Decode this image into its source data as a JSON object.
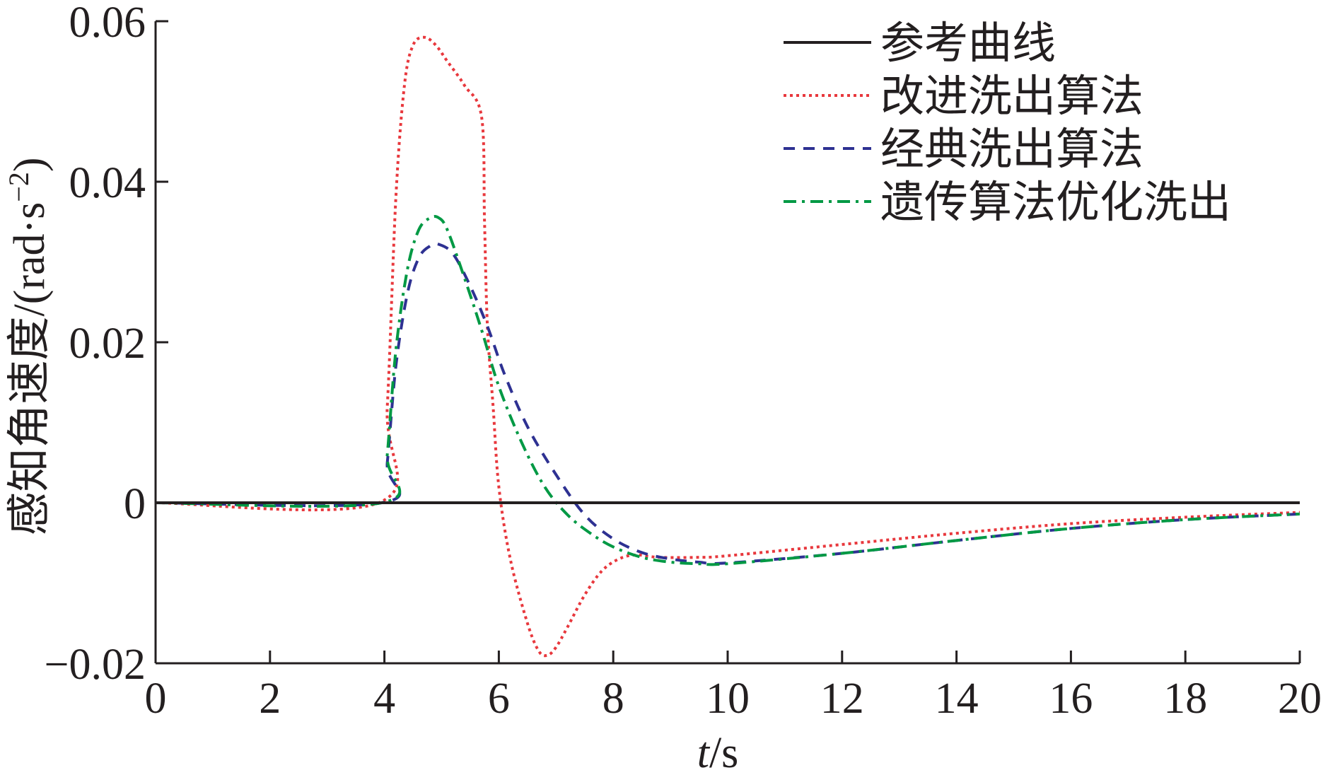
{
  "chart_data": {
    "type": "line",
    "xlabel_italic": "t",
    "xlabel_unit": "/s",
    "ylabel_main": "感知角速度/(rad·s",
    "ylabel_sup": "−2",
    "ylabel_close": ")",
    "xlim": [
      0,
      20
    ],
    "ylim": [
      -0.02,
      0.06
    ],
    "xticks": [
      0,
      2,
      4,
      6,
      8,
      10,
      12,
      14,
      16,
      18,
      20
    ],
    "xtick_labels": [
      "0",
      "2",
      "4",
      "6",
      "8",
      "10",
      "12",
      "14",
      "16",
      "18",
      "20"
    ],
    "yticks": [
      -0.02,
      0,
      0.02,
      0.04,
      0.06
    ],
    "ytick_labels": [
      "−0.02",
      "0",
      "0.02",
      "0.04",
      "0.06"
    ],
    "grid": false,
    "legend_position": "top-right",
    "series": [
      {
        "name": "参考曲线",
        "color": "#231f20",
        "dash": "solid",
        "x": [
          0,
          20
        ],
        "y": [
          0,
          0
        ]
      },
      {
        "name": "改进洗出算法",
        "color": "#e8383d",
        "dash": "dotted",
        "x": [
          0,
          3.9,
          4.05,
          4.2,
          4.35,
          4.5,
          4.7,
          4.9,
          5.1,
          5.4,
          5.7,
          5.75,
          5.8,
          5.9,
          6.0,
          6.2,
          6.5,
          6.7,
          6.85,
          7.0,
          7.2,
          7.5,
          7.8,
          8.1,
          8.4,
          8.8,
          9.5,
          10,
          12,
          14,
          16,
          18,
          20
        ],
        "y": [
          0,
          0,
          0.012,
          0.038,
          0.052,
          0.057,
          0.058,
          0.057,
          0.055,
          0.052,
          0.048,
          0.035,
          0.022,
          0.012,
          0.002,
          -0.007,
          -0.015,
          -0.0185,
          -0.019,
          -0.018,
          -0.0155,
          -0.0115,
          -0.0085,
          -0.007,
          -0.0065,
          -0.0068,
          -0.0068,
          -0.0066,
          -0.0052,
          -0.0038,
          -0.0026,
          -0.0018,
          -0.0012
        ]
      },
      {
        "name": "经典洗出算法",
        "color": "#2e3192",
        "dash": "dashed",
        "x": [
          0,
          3.95,
          4.05,
          4.2,
          4.4,
          4.6,
          4.8,
          4.95,
          5.2,
          5.5,
          5.8,
          6.1,
          6.5,
          7.0,
          7.5,
          8.0,
          8.5,
          9.0,
          9.5,
          10,
          12,
          14,
          16,
          18,
          20
        ],
        "y": [
          0,
          0,
          0.005,
          0.017,
          0.026,
          0.0305,
          0.032,
          0.0322,
          0.031,
          0.027,
          0.022,
          0.016,
          0.0095,
          0.0035,
          -0.0015,
          -0.0045,
          -0.0062,
          -0.007,
          -0.0074,
          -0.0075,
          -0.0063,
          -0.0047,
          -0.0032,
          -0.0021,
          -0.0014
        ]
      },
      {
        "name": "遗传算法优化洗出",
        "color": "#009944",
        "dash": "dashdot",
        "x": [
          0,
          3.95,
          4.05,
          4.2,
          4.4,
          4.6,
          4.8,
          4.95,
          5.1,
          5.4,
          5.7,
          6.0,
          6.4,
          6.8,
          7.2,
          7.6,
          8.0,
          8.5,
          9.0,
          9.5,
          10,
          12,
          14,
          16,
          18,
          20
        ],
        "y": [
          0,
          0,
          0.006,
          0.019,
          0.029,
          0.034,
          0.0355,
          0.0355,
          0.034,
          0.028,
          0.0215,
          0.0145,
          0.0075,
          0.002,
          -0.0015,
          -0.0038,
          -0.0055,
          -0.0068,
          -0.0074,
          -0.0076,
          -0.0076,
          -0.0063,
          -0.0047,
          -0.0032,
          -0.0021,
          -0.0014
        ]
      }
    ]
  }
}
